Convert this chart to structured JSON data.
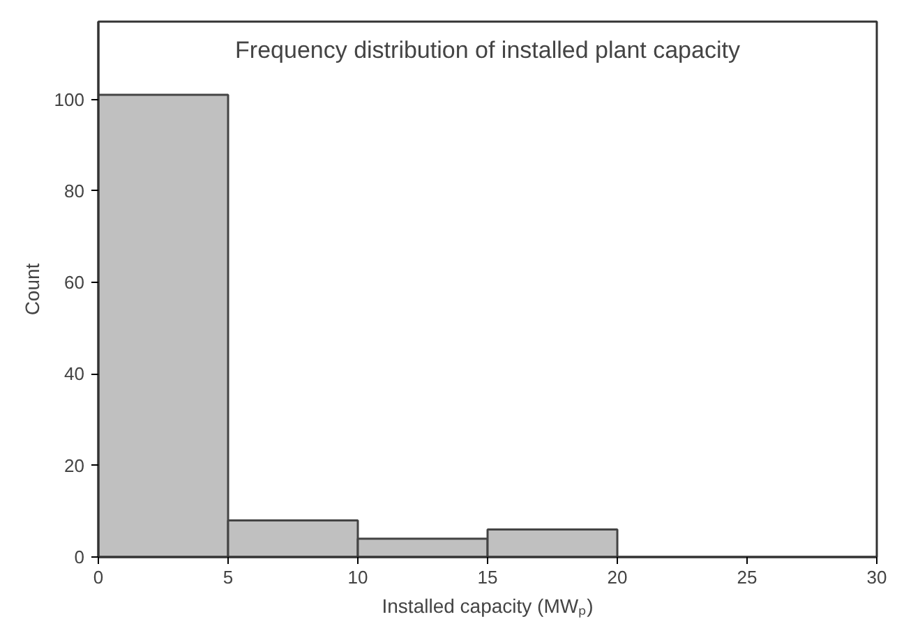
{
  "chart_data": {
    "type": "histogram",
    "title": "Frequency distribution of installed plant capacity",
    "xlabel": "Installed capacity (MWₚ)",
    "ylabel": "Count",
    "bins": [
      0,
      5,
      10,
      15,
      20
    ],
    "values": [
      101,
      8,
      4,
      6
    ],
    "color": "#c0c0c0",
    "xlim": [
      0,
      30
    ],
    "xticks": [
      0,
      5,
      10,
      15,
      20,
      25,
      30
    ],
    "ylim": [
      0,
      117
    ],
    "yticks": [
      0,
      20,
      40,
      60,
      80,
      100
    ],
    "grid": false
  }
}
